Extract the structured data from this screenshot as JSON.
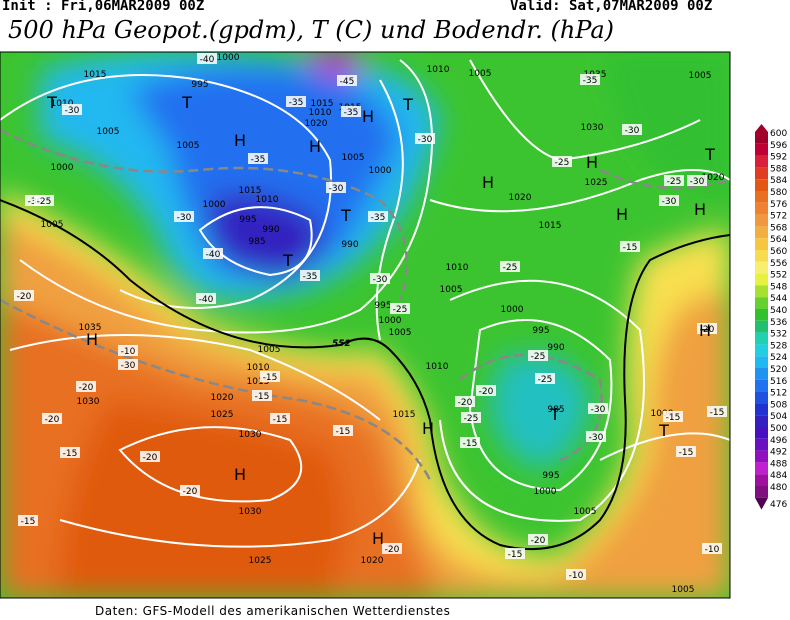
{
  "header": {
    "init": "Init : Fri,06MAR2009 00Z",
    "valid": "Valid: Sat,07MAR2009 00Z",
    "title": "500 hPa Geopot.(gpdm), T (C) und Bodendr. (hPa)"
  },
  "footer": "Daten: GFS-Modell des amerikanischen Wetterdienstes",
  "map": {
    "pressure_labels": [
      "1015",
      "995",
      "1000",
      "1010",
      "1005",
      "1005",
      "1015",
      "1020",
      "1015",
      "1010",
      "1005",
      "1000",
      "1005",
      "1010",
      "1015",
      "1010",
      "1000",
      "995",
      "990",
      "985",
      "1005",
      "1000",
      "990",
      "995",
      "1010",
      "1005",
      "1000",
      "1035",
      "1005",
      "1010",
      "1015",
      "1020",
      "1025",
      "1030",
      "1030",
      "1030",
      "1025",
      "1020",
      "1015",
      "1005",
      "1035",
      "1030",
      "1025",
      "1020",
      "1015",
      "1000",
      "995",
      "990",
      "985",
      "995",
      "1000",
      "1005",
      "1010",
      "1005",
      "1020",
      "1005",
      "1000"
    ],
    "temperature_labels": [
      "-40",
      "-45",
      "-35",
      "-35",
      "-30",
      "-30",
      "-30",
      "-25",
      "-30",
      "-40",
      "-40",
      "-35",
      "-35",
      "-35",
      "-30",
      "-30",
      "-25",
      "-20",
      "-25",
      "-35",
      "-30",
      "-25",
      "-30",
      "-20",
      "-20",
      "-20",
      "-15",
      "-15",
      "-15",
      "-15",
      "-15",
      "-15",
      "-15",
      "-10",
      "-30",
      "-25",
      "-25",
      "-20",
      "-20",
      "-25",
      "-30",
      "-15",
      "-15",
      "-20",
      "-20",
      "-15",
      "-10",
      "-20",
      "-30",
      "-25",
      "-30",
      "-20",
      "-15",
      "-10",
      "-15"
    ],
    "centres": [
      "T",
      "T",
      "H",
      "H",
      "H",
      "T",
      "T",
      "T",
      "H",
      "H",
      "H",
      "H",
      "T",
      "H",
      "T",
      "H",
      "H",
      "H",
      "H",
      "T"
    ],
    "contour_label": "552"
  },
  "colorbar": {
    "ticks": [
      600,
      596,
      592,
      588,
      584,
      580,
      576,
      572,
      568,
      564,
      560,
      556,
      552,
      548,
      544,
      540,
      536,
      532,
      528,
      524,
      520,
      516,
      512,
      508,
      504,
      500,
      496,
      492,
      488,
      484,
      480,
      476
    ],
    "colors": [
      "#a0002a",
      "#c00034",
      "#d8203a",
      "#e03c22",
      "#e25812",
      "#e87020",
      "#ee8230",
      "#f09840",
      "#f2ae40",
      "#f6c640",
      "#f8dc50",
      "#f8ee70",
      "#e8f040",
      "#a6e030",
      "#66d030",
      "#30c030",
      "#20c070",
      "#20d0b0",
      "#20d0e0",
      "#20b8f0",
      "#2092f0",
      "#2072f0",
      "#2052e0",
      "#2032d0",
      "#3420c0",
      "#4810c0",
      "#6a10c0",
      "#9010c0",
      "#c020d0",
      "#a010a0",
      "#801080",
      "#500050"
    ]
  }
}
